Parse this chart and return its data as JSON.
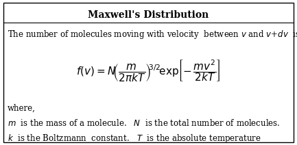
{
  "title": "Maxwell's Distribution",
  "title_fontsize": 10,
  "body_fontsize": 8.5,
  "formula_fontsize": 11,
  "bg_color": "#ffffff",
  "border_color": "#000000",
  "fig_width": 4.33,
  "fig_height": 2.12,
  "dpi": 100
}
